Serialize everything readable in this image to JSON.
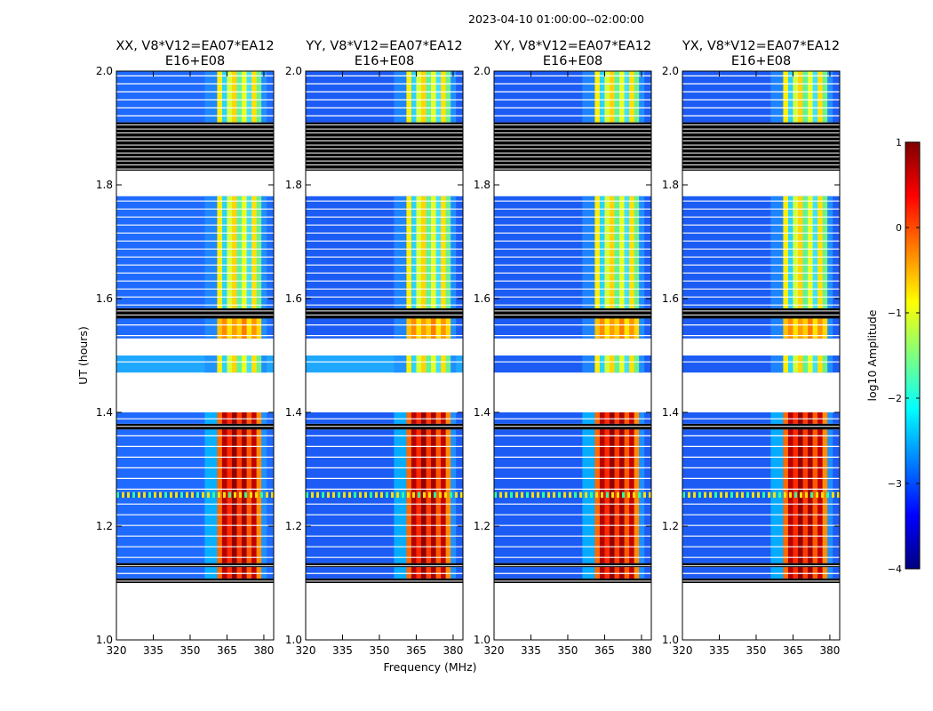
{
  "figure": {
    "suptitle": "2023-04-10  01:00:00--02:00:00",
    "xlabel": "Frequency (MHz)",
    "ylabel": "UT (hours)"
  },
  "chart_data": {
    "type": "heatmap",
    "title": "2023-04-10  01:00:00--02:00:00",
    "xlabel": "Frequency (MHz)",
    "ylabel": "UT (hours)",
    "xlim": [
      320,
      384
    ],
    "ylim": [
      1.0,
      2.0
    ],
    "x_ticks": [
      320,
      335,
      350,
      365,
      380
    ],
    "x_tick_labels": [
      "320",
      "335",
      "350",
      "365",
      "380"
    ],
    "y_ticks": [
      1.0,
      1.2,
      1.4,
      1.6,
      1.8,
      2.0
    ],
    "y_tick_labels": [
      "1.0",
      "1.2",
      "1.4",
      "1.6",
      "1.8",
      "2.0"
    ],
    "panels": [
      {
        "name": "XX",
        "title_line1": "XX, V8*V12=EA07*EA12",
        "title_line2": "E16+E08"
      },
      {
        "name": "YY",
        "title_line1": "YY, V8*V12=EA07*EA12",
        "title_line2": "E16+E08"
      },
      {
        "name": "XY",
        "title_line1": "XY, V8*V12=EA07*EA12",
        "title_line2": "E16+E08"
      },
      {
        "name": "YX",
        "title_line1": "YX, V8*V12=EA07*EA12",
        "title_line2": "E16+E08"
      }
    ],
    "time_segments": [
      {
        "from": 1.1,
        "to": 1.108,
        "kind": "flagged"
      },
      {
        "from": 1.108,
        "to": 1.128,
        "kind": "data"
      },
      {
        "from": 1.128,
        "to": 1.135,
        "kind": "flagged"
      },
      {
        "from": 1.135,
        "to": 1.25,
        "kind": "data"
      },
      {
        "from": 1.25,
        "to": 1.26,
        "kind": "data-noisy"
      },
      {
        "from": 1.26,
        "to": 1.37,
        "kind": "data"
      },
      {
        "from": 1.37,
        "to": 1.38,
        "kind": "flagged"
      },
      {
        "from": 1.38,
        "to": 1.4,
        "kind": "data"
      },
      {
        "from": 1.47,
        "to": 1.5,
        "kind": "data"
      },
      {
        "from": 1.53,
        "to": 1.565,
        "kind": "data"
      },
      {
        "from": 1.565,
        "to": 1.583,
        "kind": "flagged"
      },
      {
        "from": 1.583,
        "to": 1.78,
        "kind": "data"
      },
      {
        "from": 1.825,
        "to": 1.91,
        "kind": "flagged"
      },
      {
        "from": 1.91,
        "to": 2.0,
        "kind": "data"
      }
    ],
    "rfi_band_mhz": [
      361,
      381
    ],
    "colorbar": {
      "label": "log10 Amplitude",
      "range": [
        -4,
        1
      ],
      "ticks": [
        1,
        0,
        -1,
        -2,
        -3,
        -4
      ],
      "tick_labels": [
        "1",
        "0",
        "−1",
        "−2",
        "−3",
        "−4"
      ],
      "colormap": [
        "#00007f",
        "#0000ff",
        "#007fff",
        "#00ffff",
        "#7fff7f",
        "#ffff00",
        "#ff7f00",
        "#ff0000",
        "#7f0000"
      ]
    }
  }
}
